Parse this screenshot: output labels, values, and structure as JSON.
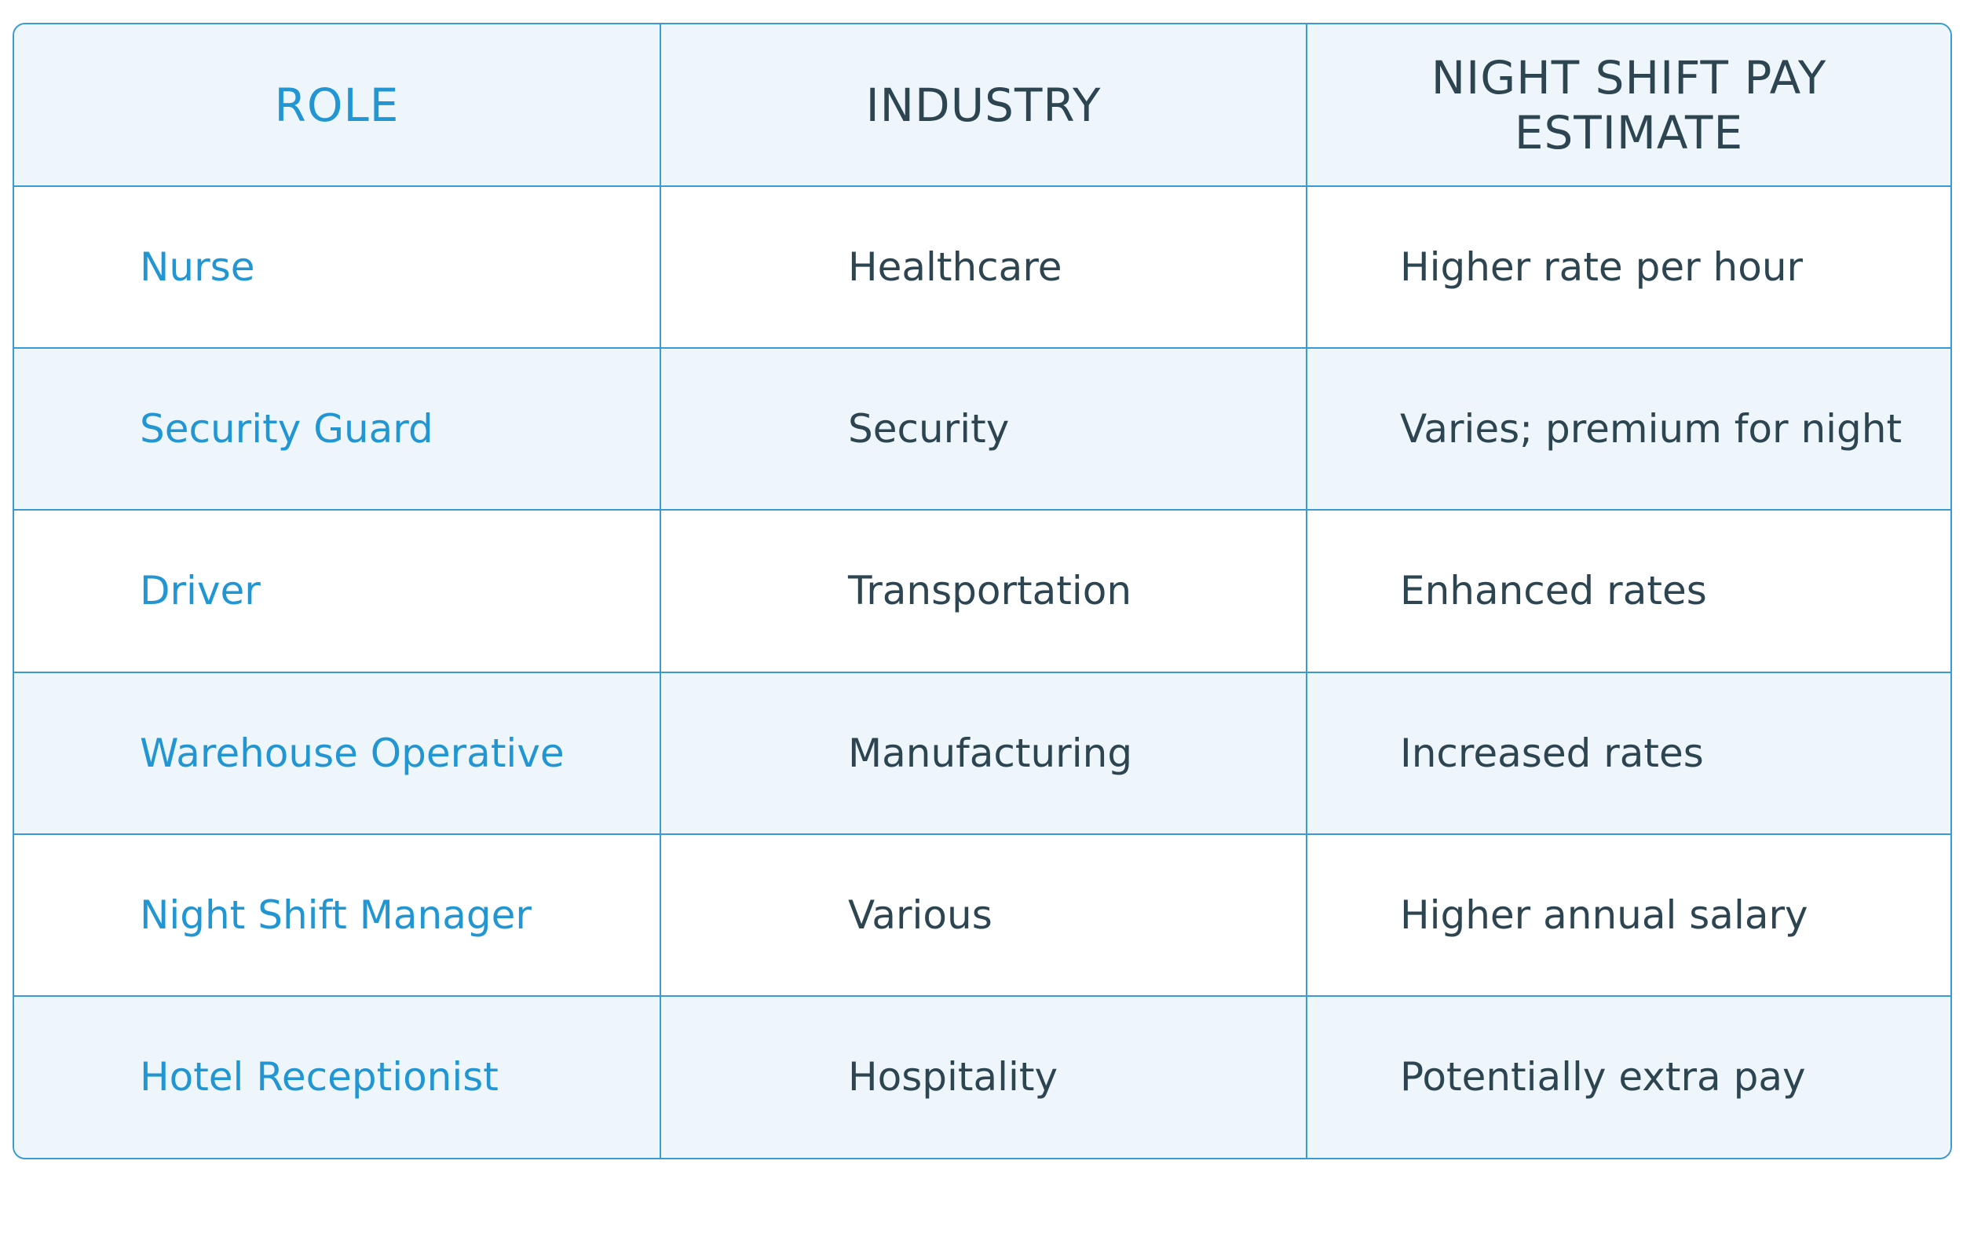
{
  "colors": {
    "accent": "#2196d3",
    "border": "#3a9ad4",
    "text": "#2d4451",
    "row_alt_bg": "#eef6fc",
    "row_bg": "#ffffff"
  },
  "table": {
    "headers": {
      "role": "ROLE",
      "industry": "INDUSTRY",
      "pay": "NIGHT SHIFT PAY ESTIMATE"
    },
    "rows": [
      {
        "role": "Nurse",
        "industry": "Healthcare",
        "pay": "Higher rate per hour"
      },
      {
        "role": "Security Guard",
        "industry": "Security",
        "pay": "Varies; premium for night"
      },
      {
        "role": "Driver",
        "industry": "Transportation",
        "pay": "Enhanced rates"
      },
      {
        "role": "Warehouse Operative",
        "industry": "Manufacturing",
        "pay": "Increased rates"
      },
      {
        "role": "Night Shift Manager",
        "industry": "Various",
        "pay": "Higher annual salary"
      },
      {
        "role": "Hotel Receptionist",
        "industry": "Hospitality",
        "pay": "Potentially extra pay"
      }
    ]
  }
}
